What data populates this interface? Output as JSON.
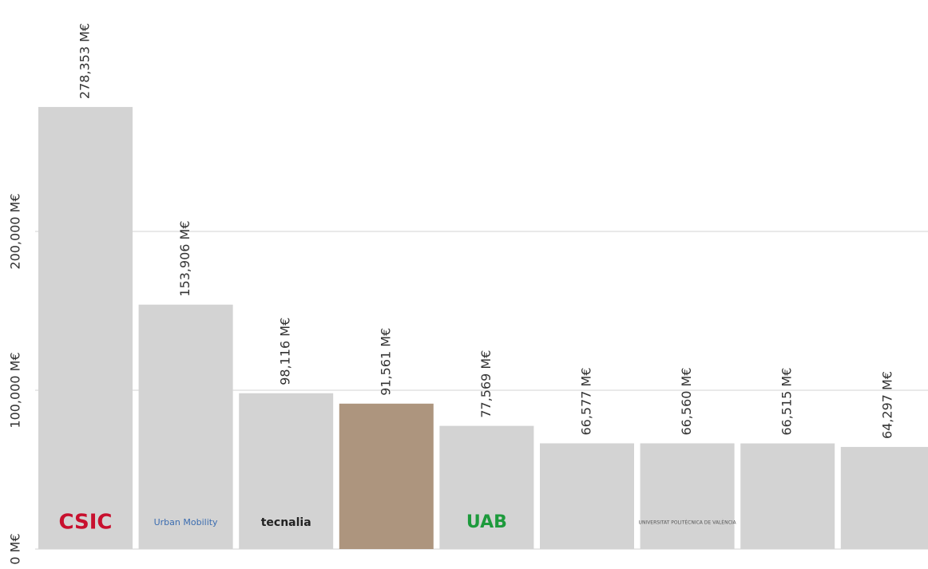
{
  "chart_data": {
    "type": "bar",
    "categories": [
      "CSIC",
      "Urban Mobility",
      "tecnalia",
      null,
      "UAB",
      null,
      "UNIVERSITAT POLITÈCNICA DE VALÈNCIA",
      null,
      null
    ],
    "values": [
      278353,
      153906,
      98116,
      91561,
      77569,
      66577,
      66560,
      66515,
      64297
    ],
    "value_labels": [
      "278,353 M€",
      "153,906 M€",
      "98,116 M€",
      "91,561 M€",
      "77,569 M€",
      "66,577 M€",
      "66,560 M€",
      "66,515 M€",
      "64,297 M€"
    ],
    "colors": [
      "#d3d3d3",
      "#d3d3d3",
      "#d3d3d3",
      "#ad957e",
      "#d3d3d3",
      "#d3d3d3",
      "#d3d3d3",
      "#d3d3d3",
      "#d3d3d3"
    ],
    "ylim": [
      0,
      350000
    ],
    "yticks": [
      {
        "value": 0,
        "label": "0 M€"
      },
      {
        "value": 100000,
        "label": "100,000 M€"
      },
      {
        "value": 200000,
        "label": "200,000 M€"
      }
    ],
    "grid": true
  }
}
